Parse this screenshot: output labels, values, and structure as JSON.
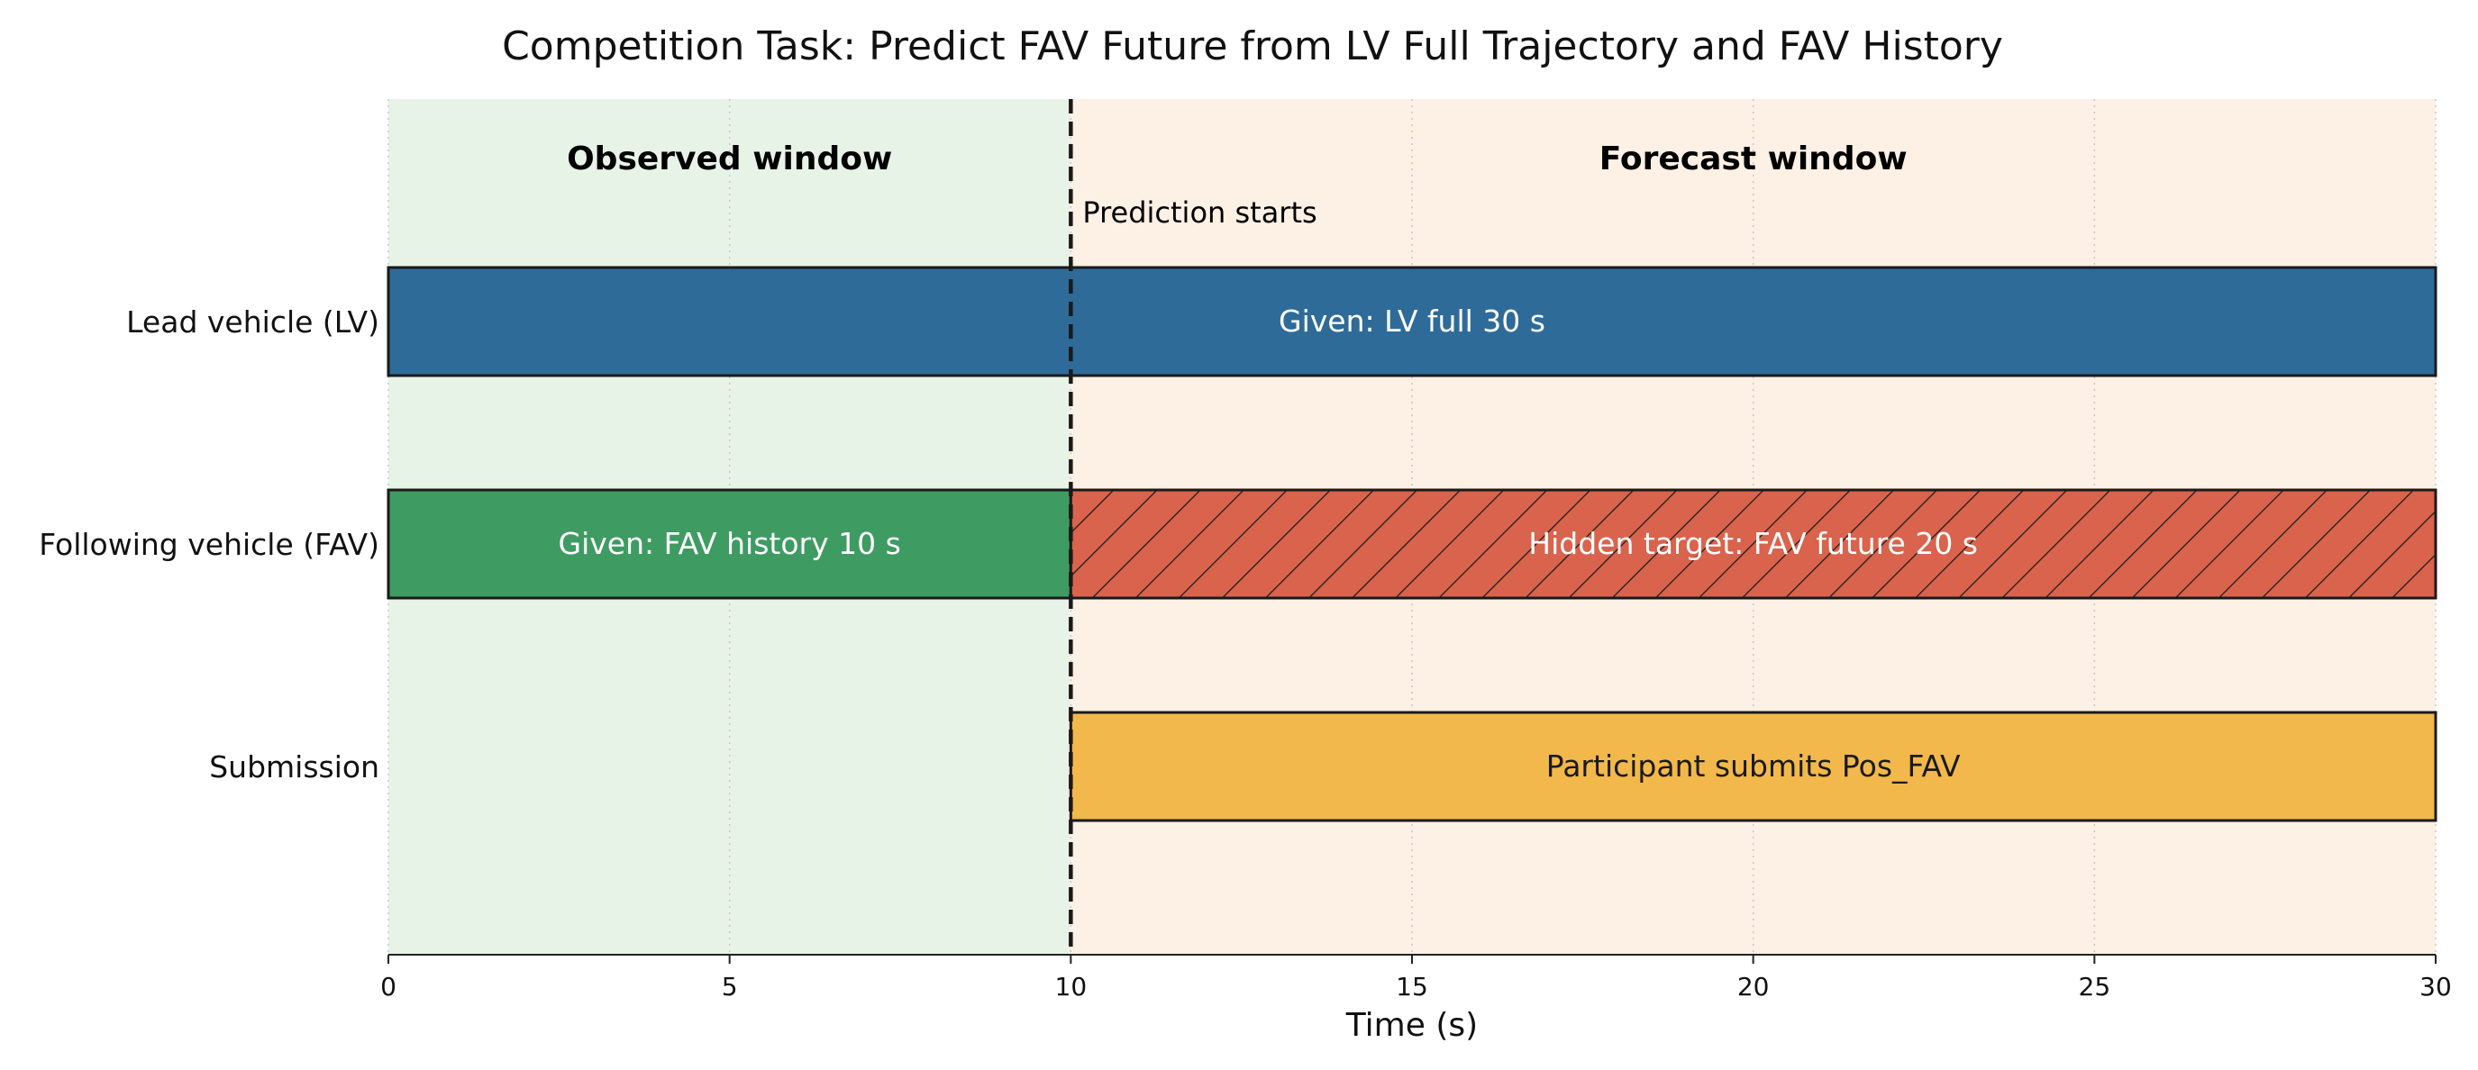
{
  "chart_data": {
    "type": "bar",
    "orientation": "horizontal",
    "chart_style": "timeline",
    "title": "Competition Task: Predict FAV Future from LV Full Trajectory and FAV History",
    "xlabel": "Time (s)",
    "ylabel": "",
    "xlim": [
      0,
      30
    ],
    "xticks": [
      0,
      5,
      10,
      15,
      20,
      25,
      30
    ],
    "grid": "vertical dotted at x ticks",
    "legend": "none",
    "regions": [
      {
        "label": "Observed window",
        "start": 0,
        "end": 10,
        "color": "#e8f3e8"
      },
      {
        "label": "Forecast window",
        "start": 10,
        "end": 30,
        "color": "#fdf0e4"
      }
    ],
    "vline": {
      "x": 10,
      "label": "Prediction starts",
      "style": "dashed",
      "color": "#1a1a1a"
    },
    "rows": [
      "Lead vehicle (LV)",
      "Following vehicle (FAV)",
      "Submission"
    ],
    "segments": [
      {
        "row": 0,
        "start": 0,
        "end": 30,
        "label": "Given: LV full 30 s",
        "color": "#2e6b99",
        "hatch": false,
        "text_color": "light"
      },
      {
        "row": 1,
        "start": 0,
        "end": 10,
        "label": "Given: FAV history 10 s",
        "color": "#3e9b62",
        "hatch": false,
        "text_color": "light"
      },
      {
        "row": 1,
        "start": 10,
        "end": 30,
        "label": "Hidden target: FAV future 20 s",
        "color": "#d9634c",
        "hatch": true,
        "text_color": "light"
      },
      {
        "row": 2,
        "start": 10,
        "end": 30,
        "label": "Participant submits Pos_FAV",
        "color": "#f2b84b",
        "hatch": false,
        "text_color": "dark"
      }
    ]
  }
}
